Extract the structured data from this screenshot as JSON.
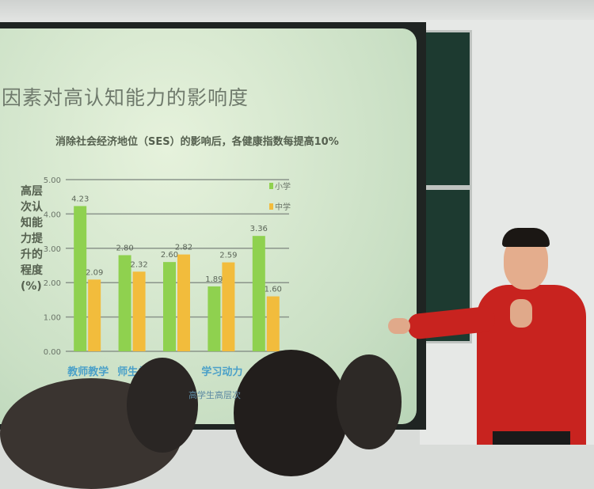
{
  "slide": {
    "title": "因素对高认知能力的影响度",
    "subtitle": "消除社会经济地位（SES）的影响后，各健康指数每提高10%",
    "y_axis_label": "高层次认知能力提升的程度(%)",
    "footer_partial": "高学生高层次"
  },
  "chart_data": {
    "type": "bar",
    "title": "消除社会经济地位（SES）的影响后，各健康指数每提高10%",
    "ylabel": "高层次认知能力提升的程度(%)",
    "ylim": [
      0,
      5
    ],
    "yticks": [
      "0.00",
      "1.00",
      "2.00",
      "3.00",
      "4.00",
      "5.00"
    ],
    "categories": [
      "教师教学",
      "师生关",
      "",
      "学习动力",
      ""
    ],
    "grid": true,
    "legend_position": "top-right",
    "series": [
      {
        "name": "小学",
        "color": "#8fd14f",
        "values": [
          4.23,
          2.8,
          2.6,
          1.89,
          3.36
        ]
      },
      {
        "name": "中学",
        "color": "#f2bc3c",
        "values": [
          2.09,
          2.32,
          2.82,
          2.59,
          1.6
        ]
      }
    ]
  }
}
